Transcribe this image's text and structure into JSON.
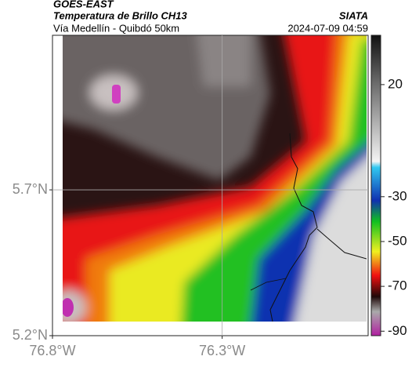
{
  "header": {
    "title": "GOES-EAST",
    "subtitle": "Temperatura de Brillo CH13",
    "route": "Vía Medellín - Quibdó 50km",
    "source": "SIATA",
    "timestamp": "2024-07-09 04:59"
  },
  "map": {
    "xlim": [
      -76.8,
      -75.87
    ],
    "ylim": [
      5.2,
      6.23
    ],
    "xticks": [
      {
        "value": -76.8,
        "label": "76.8°W"
      },
      {
        "value": -76.3,
        "label": "76.3°W"
      }
    ],
    "yticks": [
      {
        "value": 5.2,
        "label": "5.2°N"
      },
      {
        "value": 5.7,
        "label": "5.7°N"
      }
    ],
    "grid": true
  },
  "colorbar": {
    "clim": [
      -92,
      42
    ],
    "ticks": [
      20,
      -30,
      -50,
      -70,
      -90
    ]
  }
}
